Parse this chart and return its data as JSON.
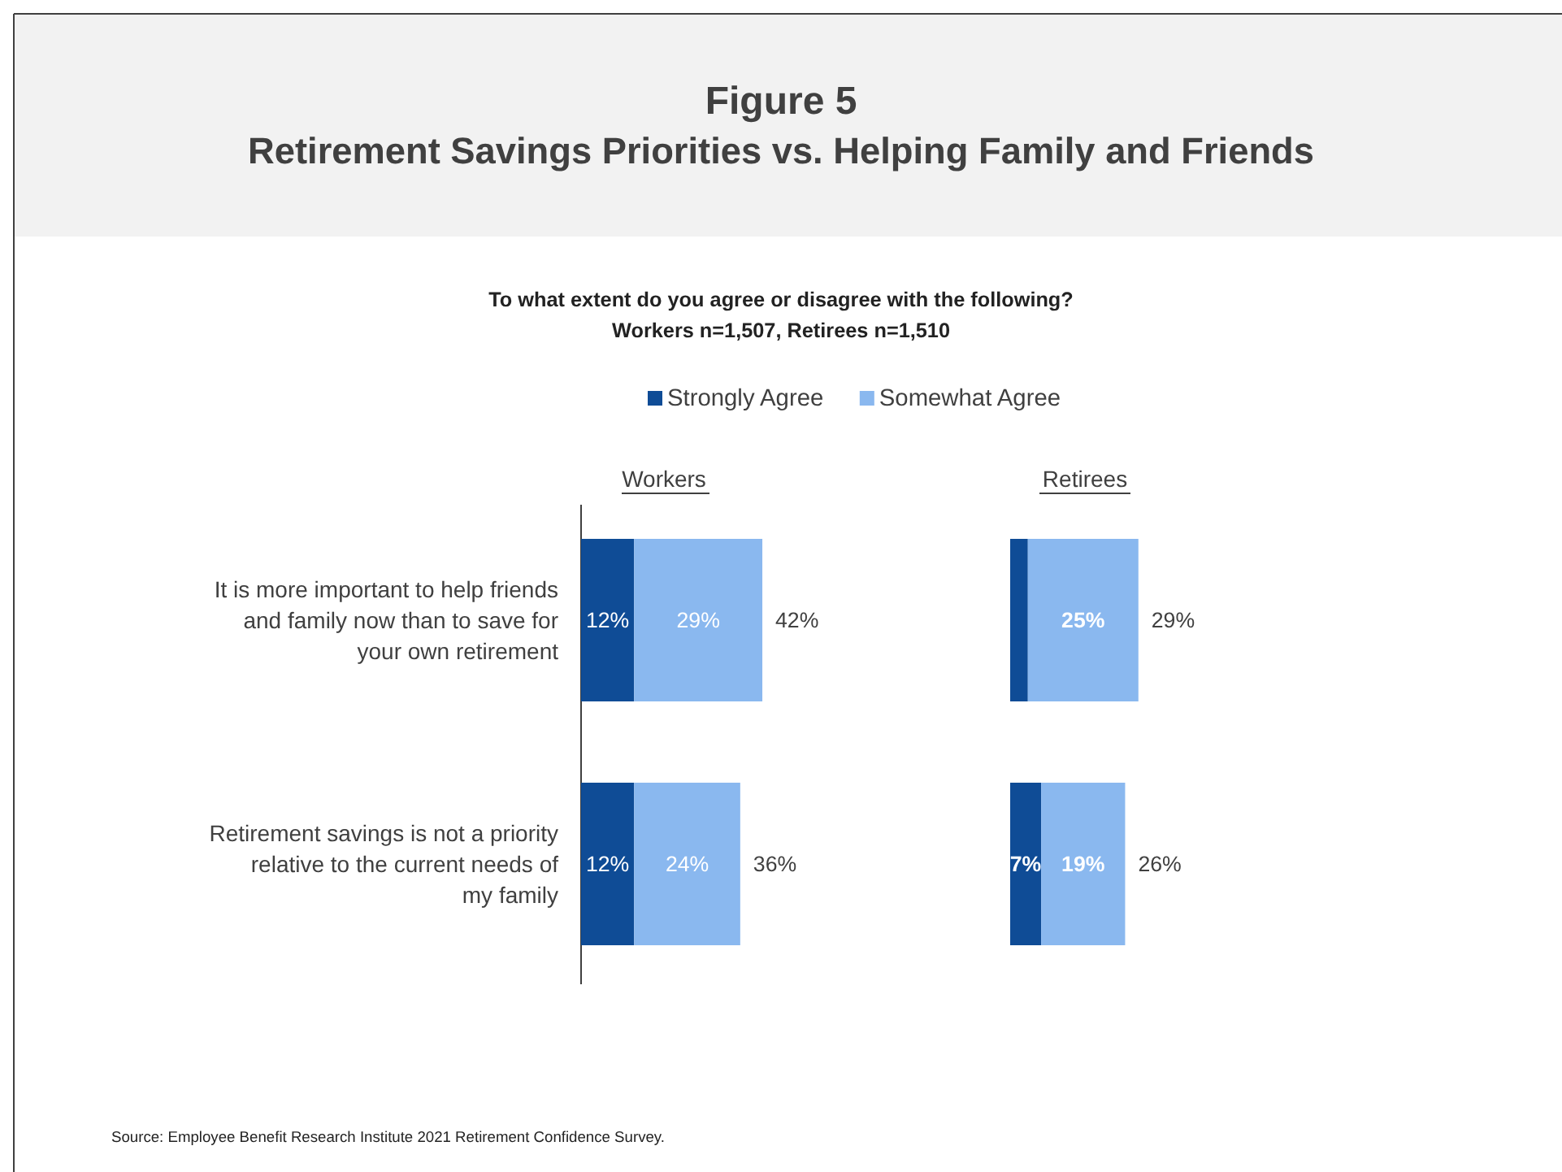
{
  "chart_data": [
    {
      "type": "other",
      "title": "Figure 5",
      "subtitle": "Retirement Savings Priorities vs. Helping Family and Friends",
      "annotations": [
        "To what extent do you agree or disagree with the following?",
        "Workers n=1,507, Retirees n=1,510",
        "Source: Employee Benefit Research Institute 2021 Retirement Confidence Survey."
      ]
    },
    {
      "type": "bar",
      "orientation": "horizontal",
      "stacked": true,
      "title": "Workers",
      "categories": [
        "It is more important to help friends\nand family now than to save for\nyour own retirement",
        "Retirement savings is not a priority\nrelative to the current needs of\nmy family"
      ],
      "legend": "top",
      "series": [
        {
          "name": "Strongly Agree",
          "color": "#0f4c96",
          "values": [
            12,
            12
          ],
          "value_labels": [
            "12%",
            "12%"
          ]
        },
        {
          "name": "Somewhat Agree",
          "color": "#8ab8ef",
          "values": [
            29,
            24
          ],
          "value_labels": [
            "29%",
            "24%"
          ]
        }
      ],
      "totals": [
        "42%",
        "36%"
      ]
    },
    {
      "type": "bar",
      "orientation": "horizontal",
      "stacked": true,
      "title": "Retirees",
      "categories": [
        null,
        null
      ],
      "series": [
        {
          "color": "#0f4c96",
          "values": [
            4,
            7
          ],
          "value_labels": [
            null,
            "7%"
          ]
        },
        {
          "color": "#8ab8ef",
          "values": [
            25,
            19
          ],
          "value_labels": [
            "25%",
            "19%"
          ]
        }
      ],
      "totals": [
        "29%",
        "26%"
      ]
    }
  ]
}
